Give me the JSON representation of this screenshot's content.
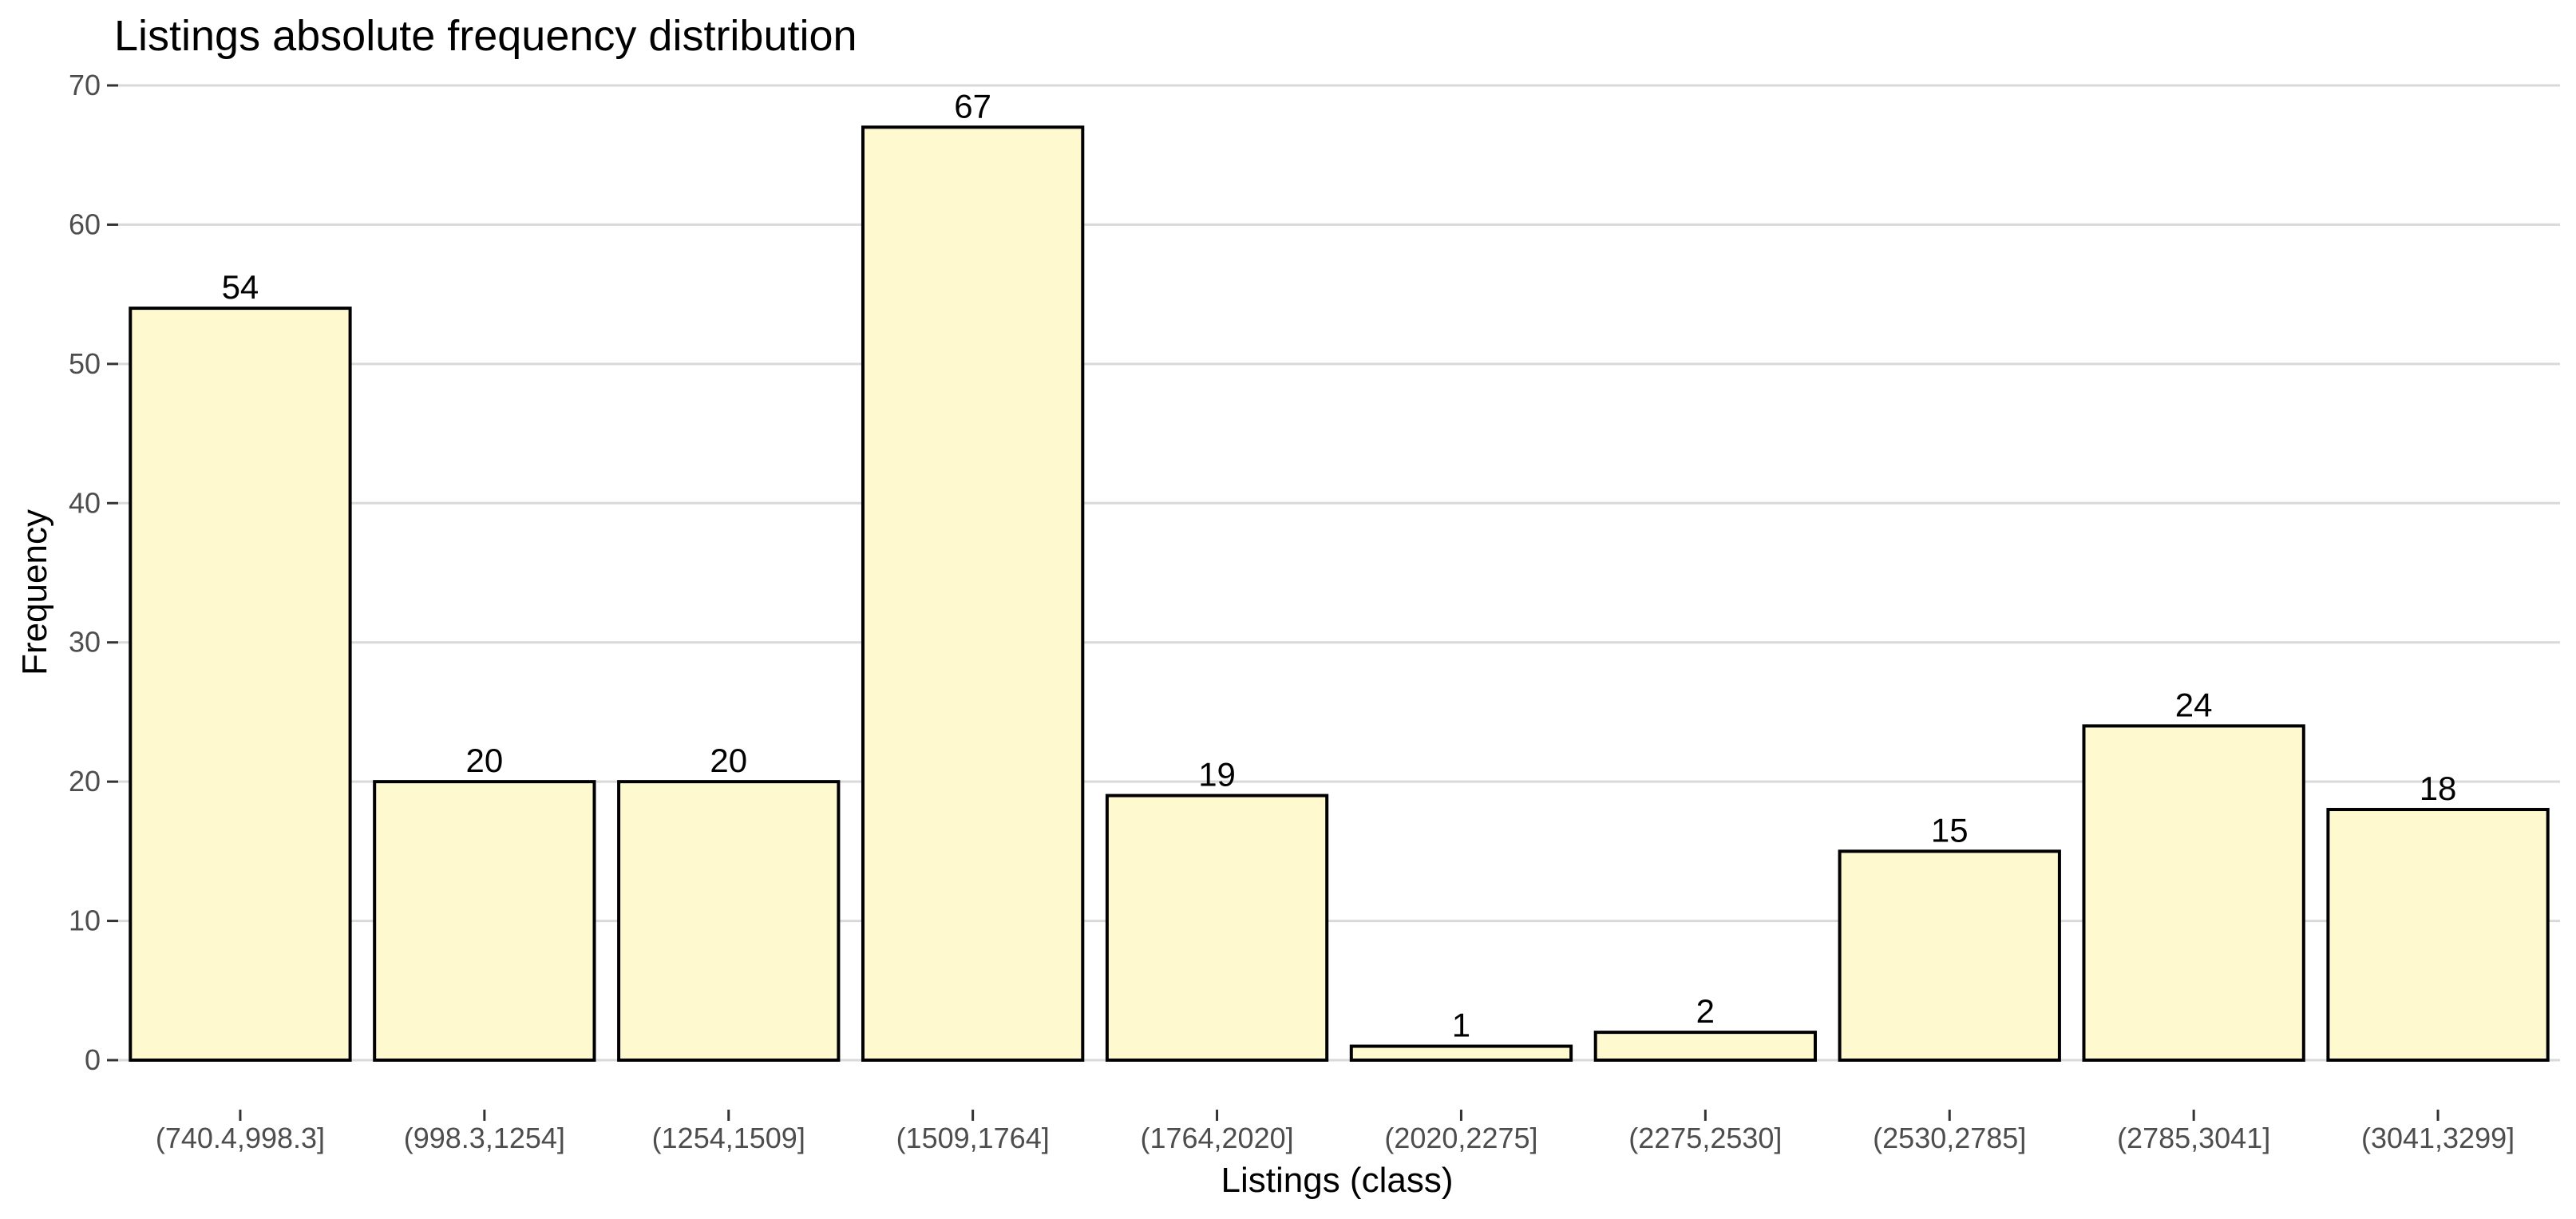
{
  "chart_data": {
    "type": "bar",
    "title": "Listings absolute frequency distribution",
    "xlabel": "Listings (class)",
    "ylabel": "Frequency",
    "categories": [
      "(740.4,998.3]",
      "(998.3,1254]",
      "(1254,1509]",
      "(1509,1764]",
      "(1764,2020]",
      "(2020,2275]",
      "(2275,2530]",
      "(2530,2785]",
      "(2785,3041]",
      "(3041,3299]"
    ],
    "values": [
      54,
      20,
      20,
      67,
      19,
      1,
      2,
      15,
      24,
      18
    ],
    "data_labels": [
      "54",
      "20",
      "20",
      "67",
      "19",
      "1",
      "2",
      "15",
      "24",
      "18"
    ],
    "ylim": [
      0,
      70
    ],
    "yticks": [
      0,
      10,
      20,
      30,
      40,
      50,
      60,
      70
    ],
    "ytick_labels": [
      "0",
      "10",
      "20",
      "30",
      "40",
      "50",
      "60",
      "70"
    ],
    "grid": true,
    "legend": "none",
    "colors": {
      "bar_fill": "#fff9d0",
      "bar_stroke": "#000000",
      "grid": "#d9d9d9"
    }
  }
}
